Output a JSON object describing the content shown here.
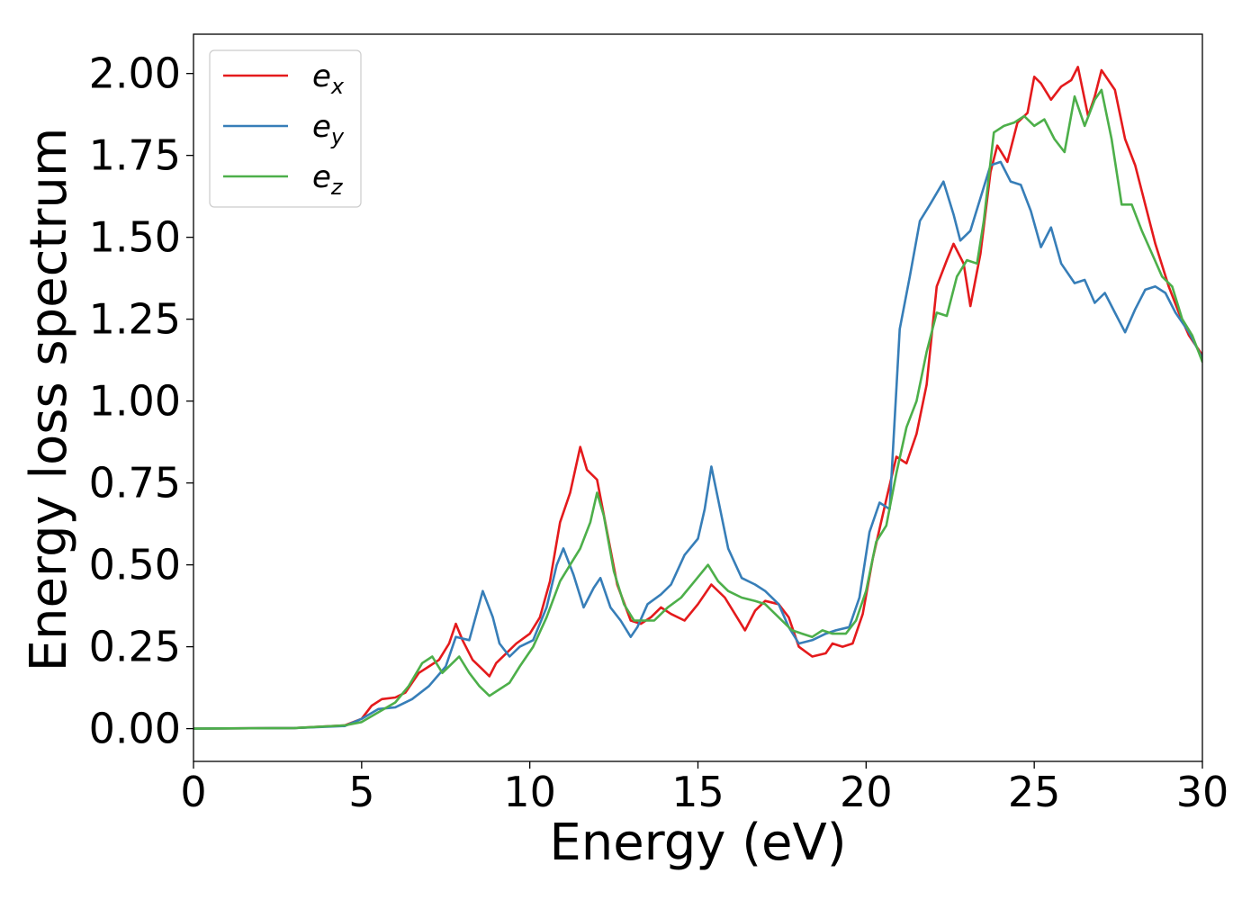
{
  "chart_data": {
    "type": "line",
    "xlabel": "Energy (eV)",
    "ylabel": "Energy loss spectrum",
    "xlim": [
      0,
      30
    ],
    "ylim": [
      -0.1,
      2.12
    ],
    "xticks": [
      "0",
      "5",
      "10",
      "15",
      "20",
      "25",
      "30"
    ],
    "yticks": [
      "0.00",
      "0.25",
      "0.50",
      "0.75",
      "1.00",
      "1.25",
      "1.50",
      "1.75",
      "2.00"
    ],
    "grid": false,
    "legend_position": "top-left",
    "series": [
      {
        "name": "e",
        "subscript": "x",
        "color": "#e41a1c",
        "points": [
          [
            0,
            0
          ],
          [
            3,
            0.002
          ],
          [
            4.5,
            0.01
          ],
          [
            5,
            0.03
          ],
          [
            5.3,
            0.07
          ],
          [
            5.6,
            0.09
          ],
          [
            6,
            0.095
          ],
          [
            6.3,
            0.11
          ],
          [
            6.7,
            0.17
          ],
          [
            7,
            0.19
          ],
          [
            7.3,
            0.21
          ],
          [
            7.6,
            0.26
          ],
          [
            7.8,
            0.32
          ],
          [
            8,
            0.27
          ],
          [
            8.3,
            0.21
          ],
          [
            8.6,
            0.18
          ],
          [
            8.8,
            0.16
          ],
          [
            9,
            0.2
          ],
          [
            9.3,
            0.23
          ],
          [
            9.6,
            0.26
          ],
          [
            10,
            0.29
          ],
          [
            10.3,
            0.34
          ],
          [
            10.6,
            0.45
          ],
          [
            10.9,
            0.63
          ],
          [
            11.2,
            0.72
          ],
          [
            11.5,
            0.86
          ],
          [
            11.7,
            0.79
          ],
          [
            12,
            0.76
          ],
          [
            12.3,
            0.6
          ],
          [
            12.6,
            0.44
          ],
          [
            13,
            0.33
          ],
          [
            13.3,
            0.32
          ],
          [
            13.6,
            0.34
          ],
          [
            13.9,
            0.37
          ],
          [
            14.2,
            0.35
          ],
          [
            14.6,
            0.33
          ],
          [
            15,
            0.38
          ],
          [
            15.4,
            0.44
          ],
          [
            15.8,
            0.4
          ],
          [
            16.1,
            0.35
          ],
          [
            16.4,
            0.3
          ],
          [
            16.7,
            0.36
          ],
          [
            17,
            0.39
          ],
          [
            17.4,
            0.38
          ],
          [
            17.7,
            0.34
          ],
          [
            18,
            0.25
          ],
          [
            18.4,
            0.22
          ],
          [
            18.8,
            0.23
          ],
          [
            19,
            0.26
          ],
          [
            19.3,
            0.25
          ],
          [
            19.6,
            0.26
          ],
          [
            19.9,
            0.35
          ],
          [
            20.2,
            0.52
          ],
          [
            20.6,
            0.7
          ],
          [
            20.9,
            0.83
          ],
          [
            21.2,
            0.81
          ],
          [
            21.5,
            0.9
          ],
          [
            21.8,
            1.05
          ],
          [
            22.1,
            1.35
          ],
          [
            22.4,
            1.43
          ],
          [
            22.6,
            1.48
          ],
          [
            22.9,
            1.42
          ],
          [
            23.1,
            1.29
          ],
          [
            23.4,
            1.45
          ],
          [
            23.7,
            1.7
          ],
          [
            23.9,
            1.78
          ],
          [
            24.2,
            1.73
          ],
          [
            24.5,
            1.85
          ],
          [
            24.8,
            1.88
          ],
          [
            25,
            1.99
          ],
          [
            25.2,
            1.97
          ],
          [
            25.5,
            1.92
          ],
          [
            25.8,
            1.96
          ],
          [
            26.1,
            1.98
          ],
          [
            26.3,
            2.02
          ],
          [
            26.6,
            1.87
          ],
          [
            26.8,
            1.93
          ],
          [
            27,
            2.01
          ],
          [
            27.2,
            1.98
          ],
          [
            27.4,
            1.95
          ],
          [
            27.7,
            1.8
          ],
          [
            28,
            1.72
          ],
          [
            28.3,
            1.6
          ],
          [
            28.6,
            1.48
          ],
          [
            29,
            1.35
          ],
          [
            29.3,
            1.27
          ],
          [
            29.6,
            1.2
          ],
          [
            30,
            1.14
          ]
        ]
      },
      {
        "name": "e",
        "subscript": "y",
        "color": "#377eb8",
        "points": [
          [
            0,
            0
          ],
          [
            3,
            0.002
          ],
          [
            4.5,
            0.008
          ],
          [
            5,
            0.03
          ],
          [
            5.5,
            0.06
          ],
          [
            6,
            0.065
          ],
          [
            6.5,
            0.09
          ],
          [
            7,
            0.13
          ],
          [
            7.5,
            0.19
          ],
          [
            7.8,
            0.28
          ],
          [
            8.2,
            0.27
          ],
          [
            8.6,
            0.42
          ],
          [
            8.9,
            0.34
          ],
          [
            9.1,
            0.26
          ],
          [
            9.4,
            0.22
          ],
          [
            9.7,
            0.25
          ],
          [
            10.1,
            0.27
          ],
          [
            10.5,
            0.37
          ],
          [
            10.8,
            0.5
          ],
          [
            11,
            0.55
          ],
          [
            11.3,
            0.47
          ],
          [
            11.6,
            0.37
          ],
          [
            11.9,
            0.43
          ],
          [
            12.1,
            0.46
          ],
          [
            12.4,
            0.37
          ],
          [
            12.7,
            0.33
          ],
          [
            13,
            0.28
          ],
          [
            13.2,
            0.31
          ],
          [
            13.5,
            0.38
          ],
          [
            13.9,
            0.41
          ],
          [
            14.2,
            0.44
          ],
          [
            14.6,
            0.53
          ],
          [
            15,
            0.58
          ],
          [
            15.2,
            0.67
          ],
          [
            15.4,
            0.8
          ],
          [
            15.6,
            0.7
          ],
          [
            15.9,
            0.55
          ],
          [
            16.3,
            0.46
          ],
          [
            16.7,
            0.44
          ],
          [
            17,
            0.42
          ],
          [
            17.4,
            0.38
          ],
          [
            17.7,
            0.31
          ],
          [
            18,
            0.26
          ],
          [
            18.4,
            0.27
          ],
          [
            18.8,
            0.29
          ],
          [
            19.1,
            0.3
          ],
          [
            19.5,
            0.31
          ],
          [
            19.8,
            0.4
          ],
          [
            20.1,
            0.6
          ],
          [
            20.4,
            0.69
          ],
          [
            20.7,
            0.67
          ],
          [
            21,
            1.22
          ],
          [
            21.3,
            1.38
          ],
          [
            21.6,
            1.55
          ],
          [
            21.9,
            1.6
          ],
          [
            22.3,
            1.67
          ],
          [
            22.6,
            1.57
          ],
          [
            22.8,
            1.49
          ],
          [
            23.1,
            1.52
          ],
          [
            23.4,
            1.62
          ],
          [
            23.7,
            1.72
          ],
          [
            24,
            1.73
          ],
          [
            24.3,
            1.67
          ],
          [
            24.6,
            1.66
          ],
          [
            24.9,
            1.58
          ],
          [
            25.2,
            1.47
          ],
          [
            25.5,
            1.53
          ],
          [
            25.8,
            1.42
          ],
          [
            26.2,
            1.36
          ],
          [
            26.5,
            1.37
          ],
          [
            26.8,
            1.3
          ],
          [
            27.1,
            1.33
          ],
          [
            27.4,
            1.27
          ],
          [
            27.7,
            1.21
          ],
          [
            28,
            1.28
          ],
          [
            28.3,
            1.34
          ],
          [
            28.6,
            1.35
          ],
          [
            28.9,
            1.33
          ],
          [
            29.2,
            1.27
          ],
          [
            29.6,
            1.21
          ],
          [
            30,
            1.13
          ]
        ]
      },
      {
        "name": "e",
        "subscript": "z",
        "color": "#4daf4a",
        "points": [
          [
            0,
            0
          ],
          [
            3,
            0.002
          ],
          [
            4.5,
            0.01
          ],
          [
            5,
            0.02
          ],
          [
            5.5,
            0.05
          ],
          [
            6,
            0.08
          ],
          [
            6.4,
            0.13
          ],
          [
            6.8,
            0.2
          ],
          [
            7.1,
            0.22
          ],
          [
            7.4,
            0.17
          ],
          [
            7.7,
            0.2
          ],
          [
            7.9,
            0.22
          ],
          [
            8.2,
            0.17
          ],
          [
            8.5,
            0.13
          ],
          [
            8.8,
            0.1
          ],
          [
            9.1,
            0.12
          ],
          [
            9.4,
            0.14
          ],
          [
            9.7,
            0.19
          ],
          [
            10.1,
            0.25
          ],
          [
            10.5,
            0.34
          ],
          [
            10.9,
            0.45
          ],
          [
            11.2,
            0.5
          ],
          [
            11.5,
            0.55
          ],
          [
            11.8,
            0.63
          ],
          [
            12,
            0.72
          ],
          [
            12.2,
            0.65
          ],
          [
            12.5,
            0.48
          ],
          [
            12.8,
            0.38
          ],
          [
            13.1,
            0.33
          ],
          [
            13.4,
            0.33
          ],
          [
            13.7,
            0.33
          ],
          [
            14.1,
            0.37
          ],
          [
            14.5,
            0.4
          ],
          [
            14.9,
            0.45
          ],
          [
            15.3,
            0.5
          ],
          [
            15.6,
            0.45
          ],
          [
            15.9,
            0.42
          ],
          [
            16.3,
            0.4
          ],
          [
            16.7,
            0.39
          ],
          [
            17,
            0.38
          ],
          [
            17.4,
            0.34
          ],
          [
            17.8,
            0.3
          ],
          [
            18.1,
            0.29
          ],
          [
            18.4,
            0.28
          ],
          [
            18.7,
            0.3
          ],
          [
            19,
            0.29
          ],
          [
            19.4,
            0.29
          ],
          [
            19.7,
            0.33
          ],
          [
            20,
            0.42
          ],
          [
            20.3,
            0.57
          ],
          [
            20.6,
            0.62
          ],
          [
            20.9,
            0.78
          ],
          [
            21.2,
            0.92
          ],
          [
            21.5,
            1.0
          ],
          [
            21.8,
            1.15
          ],
          [
            22.1,
            1.27
          ],
          [
            22.4,
            1.26
          ],
          [
            22.7,
            1.38
          ],
          [
            23,
            1.43
          ],
          [
            23.3,
            1.42
          ],
          [
            23.5,
            1.55
          ],
          [
            23.8,
            1.82
          ],
          [
            24.1,
            1.84
          ],
          [
            24.4,
            1.85
          ],
          [
            24.7,
            1.87
          ],
          [
            25,
            1.84
          ],
          [
            25.3,
            1.86
          ],
          [
            25.6,
            1.8
          ],
          [
            25.9,
            1.76
          ],
          [
            26.2,
            1.93
          ],
          [
            26.5,
            1.84
          ],
          [
            26.8,
            1.92
          ],
          [
            27,
            1.95
          ],
          [
            27.3,
            1.8
          ],
          [
            27.6,
            1.6
          ],
          [
            27.9,
            1.6
          ],
          [
            28.2,
            1.52
          ],
          [
            28.5,
            1.45
          ],
          [
            28.8,
            1.38
          ],
          [
            29.1,
            1.35
          ],
          [
            29.4,
            1.25
          ],
          [
            29.7,
            1.2
          ],
          [
            30,
            1.12
          ]
        ]
      }
    ]
  }
}
